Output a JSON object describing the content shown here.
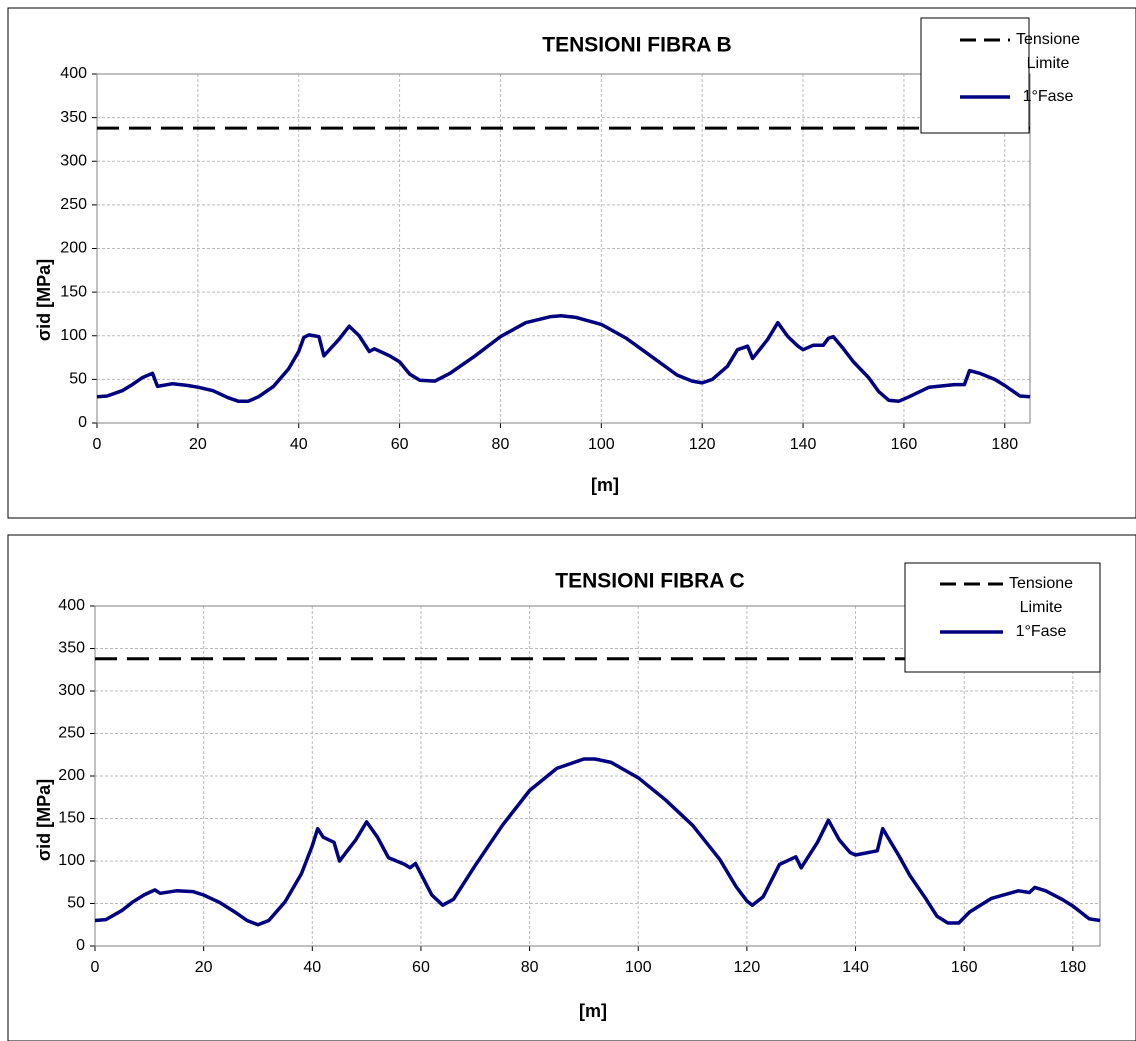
{
  "chart_data": [
    {
      "type": "line",
      "title": "TENSIONI FIBRA B",
      "x_label": "[m]",
      "y_label": "σid [MPa]",
      "xlim": [
        0,
        185
      ],
      "ylim": [
        0,
        400
      ],
      "xticks": [
        0,
        20,
        40,
        60,
        80,
        100,
        120,
        140,
        160,
        180
      ],
      "yticks": [
        0,
        50,
        100,
        150,
        200,
        250,
        300,
        350,
        400
      ],
      "grid": true,
      "legend": "top-right",
      "series": [
        {
          "name": "Tensione Limite",
          "color": "#000000",
          "dash": true,
          "x": [
            0,
            185
          ],
          "values": [
            338,
            338
          ]
        },
        {
          "name": "1°Fase",
          "color": "#000080",
          "dash": false,
          "x": [
            0,
            2,
            5,
            7,
            9,
            11,
            12,
            15,
            18,
            20,
            23,
            26,
            28,
            30,
            32,
            35,
            38,
            40,
            41,
            42,
            44,
            45,
            48,
            50,
            52,
            54,
            55,
            58,
            60,
            62,
            64,
            67,
            70,
            75,
            80,
            85,
            90,
            92,
            95,
            100,
            105,
            110,
            115,
            118,
            120,
            122,
            125,
            127,
            129,
            130,
            133,
            135,
            137,
            139,
            140,
            142,
            144,
            145,
            146,
            148,
            150,
            153,
            155,
            157,
            159,
            161,
            165,
            170,
            172,
            173,
            175,
            178,
            180,
            183,
            185
          ],
          "values": [
            30,
            31,
            37,
            44,
            52,
            57,
            42,
            45,
            43,
            41,
            37,
            29,
            25,
            25,
            30,
            42,
            62,
            82,
            98,
            101,
            99,
            77,
            96,
            111,
            100,
            82,
            85,
            77,
            70,
            56,
            49,
            48,
            57,
            77,
            99,
            115,
            122,
            123,
            121,
            113,
            97,
            76,
            55,
            48,
            46,
            50,
            65,
            84,
            88,
            74,
            96,
            115,
            99,
            88,
            84,
            89,
            89,
            97,
            99,
            85,
            70,
            52,
            36,
            26,
            25,
            30,
            41,
            44,
            44,
            60,
            57,
            50,
            43,
            31,
            30
          ]
        }
      ]
    },
    {
      "type": "line",
      "title": "TENSIONI FIBRA C",
      "x_label": "[m]",
      "y_label": "σid [MPa]",
      "xlim": [
        0,
        185
      ],
      "ylim": [
        0,
        400
      ],
      "xticks": [
        0,
        20,
        40,
        60,
        80,
        100,
        120,
        140,
        160,
        180
      ],
      "yticks": [
        0,
        50,
        100,
        150,
        200,
        250,
        300,
        350,
        400
      ],
      "grid": true,
      "legend": "top-right",
      "series": [
        {
          "name": "Tensione Limite",
          "color": "#000000",
          "dash": true,
          "x": [
            0,
            185
          ],
          "values": [
            338,
            338
          ]
        },
        {
          "name": "1°Fase",
          "color": "#000080",
          "dash": false,
          "x": [
            0,
            2,
            5,
            7,
            9,
            11,
            12,
            15,
            18,
            20,
            23,
            26,
            28,
            30,
            32,
            35,
            38,
            40,
            41,
            42,
            44,
            45,
            48,
            50,
            52,
            54,
            57,
            58,
            59,
            62,
            64,
            66,
            70,
            75,
            80,
            85,
            90,
            92,
            95,
            100,
            105,
            110,
            115,
            118,
            120,
            121,
            123,
            126,
            129,
            130,
            133,
            135,
            137,
            139,
            140,
            144,
            145,
            148,
            150,
            153,
            155,
            157,
            159,
            161,
            165,
            170,
            172,
            173,
            175,
            178,
            180,
            183,
            185
          ],
          "values": [
            30,
            31,
            42,
            52,
            60,
            66,
            62,
            65,
            64,
            60,
            51,
            39,
            30,
            25,
            30,
            52,
            85,
            118,
            138,
            128,
            122,
            100,
            125,
            146,
            128,
            104,
            96,
            92,
            97,
            60,
            48,
            55,
            95,
            142,
            183,
            209,
            220,
            220,
            216,
            198,
            172,
            142,
            102,
            70,
            53,
            48,
            58,
            96,
            105,
            92,
            122,
            148,
            125,
            110,
            107,
            112,
            138,
            106,
            83,
            55,
            35,
            27,
            27,
            40,
            56,
            65,
            63,
            69,
            65,
            55,
            47,
            32,
            30
          ]
        }
      ]
    }
  ]
}
